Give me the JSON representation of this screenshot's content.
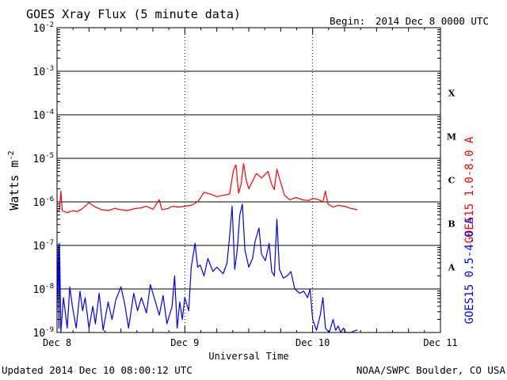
{
  "chart_data": {
    "type": "line",
    "title": "GOES Xray Flux (5 minute data)",
    "begin_label": "Begin:",
    "begin_value": "2014 Dec 8 0000 UTC",
    "xlabel": "Universal Time",
    "ylabel": "Watts m",
    "ylabel_exponent": "-2",
    "y_scale": "log",
    "ylim_exponents": [
      -9,
      -2
    ],
    "xlim_days": [
      0,
      3
    ],
    "x_ticks": [
      {
        "day": 0,
        "label": "Dec 8"
      },
      {
        "day": 1,
        "label": "Dec 9"
      },
      {
        "day": 2,
        "label": "Dec 10"
      },
      {
        "day": 3,
        "label": "Dec 11"
      }
    ],
    "y_ticks": [
      {
        "exp": -2,
        "base": "10",
        "sup": "-2"
      },
      {
        "exp": -3,
        "base": "10",
        "sup": "-3"
      },
      {
        "exp": -4,
        "base": "10",
        "sup": "-4"
      },
      {
        "exp": -5,
        "base": "10",
        "sup": "-5"
      },
      {
        "exp": -6,
        "base": "10",
        "sup": "-6"
      },
      {
        "exp": -7,
        "base": "10",
        "sup": "-7"
      },
      {
        "exp": -8,
        "base": "10",
        "sup": "-8"
      },
      {
        "exp": -9,
        "base": "10",
        "sup": "-9"
      }
    ],
    "flare_classes": [
      {
        "label": "X",
        "exp": -3.5
      },
      {
        "label": "M",
        "exp": -4.5
      },
      {
        "label": "C",
        "exp": -5.5
      },
      {
        "label": "B",
        "exp": -6.5
      },
      {
        "label": "A",
        "exp": -7.5
      }
    ],
    "grid": true,
    "series": [
      {
        "name": "GOES15 1.0-8.0 A",
        "color": "#ff0000",
        "points": [
          [
            0.0,
            -6.22
          ],
          [
            0.02,
            -6.18
          ],
          [
            0.03,
            -5.75
          ],
          [
            0.04,
            -6.2
          ],
          [
            0.08,
            -6.25
          ],
          [
            0.12,
            -6.2
          ],
          [
            0.16,
            -6.22
          ],
          [
            0.2,
            -6.15
          ],
          [
            0.25,
            -6.02
          ],
          [
            0.3,
            -6.12
          ],
          [
            0.35,
            -6.18
          ],
          [
            0.4,
            -6.2
          ],
          [
            0.45,
            -6.15
          ],
          [
            0.5,
            -6.18
          ],
          [
            0.55,
            -6.2
          ],
          [
            0.6,
            -6.16
          ],
          [
            0.65,
            -6.14
          ],
          [
            0.7,
            -6.1
          ],
          [
            0.75,
            -6.17
          ],
          [
            0.8,
            -5.95
          ],
          [
            0.82,
            -6.18
          ],
          [
            0.87,
            -6.15
          ],
          [
            0.9,
            -6.1
          ],
          [
            0.95,
            -6.12
          ],
          [
            1.0,
            -6.1
          ],
          [
            1.05,
            -6.08
          ],
          [
            1.1,
            -6.0
          ],
          [
            1.12,
            -5.92
          ],
          [
            1.15,
            -5.78
          ],
          [
            1.2,
            -5.82
          ],
          [
            1.25,
            -5.88
          ],
          [
            1.3,
            -5.85
          ],
          [
            1.35,
            -5.82
          ],
          [
            1.38,
            -5.28
          ],
          [
            1.4,
            -5.15
          ],
          [
            1.42,
            -5.8
          ],
          [
            1.44,
            -5.6
          ],
          [
            1.46,
            -5.12
          ],
          [
            1.48,
            -5.5
          ],
          [
            1.5,
            -5.7
          ],
          [
            1.53,
            -5.52
          ],
          [
            1.56,
            -5.35
          ],
          [
            1.6,
            -5.45
          ],
          [
            1.65,
            -5.3
          ],
          [
            1.68,
            -5.6
          ],
          [
            1.7,
            -5.72
          ],
          [
            1.72,
            -5.25
          ],
          [
            1.75,
            -5.55
          ],
          [
            1.78,
            -5.85
          ],
          [
            1.82,
            -5.95
          ],
          [
            1.87,
            -5.9
          ],
          [
            1.92,
            -5.95
          ],
          [
            1.97,
            -5.97
          ],
          [
            2.0,
            -5.92
          ],
          [
            2.05,
            -5.95
          ],
          [
            2.08,
            -6.0
          ],
          [
            2.1,
            -5.75
          ],
          [
            2.12,
            -6.05
          ],
          [
            2.16,
            -6.12
          ],
          [
            2.2,
            -6.08
          ],
          [
            2.25,
            -6.1
          ],
          [
            2.3,
            -6.15
          ],
          [
            2.35,
            -6.18
          ]
        ]
      },
      {
        "name": "GOES15 0.5-4.0 A",
        "color": "#0000ff",
        "points": [
          [
            0.0,
            -8.5
          ],
          [
            0.01,
            -6.98
          ],
          [
            0.015,
            -8.9
          ],
          [
            0.02,
            -6.95
          ],
          [
            0.03,
            -9.0
          ],
          [
            0.05,
            -8.2
          ],
          [
            0.08,
            -8.9
          ],
          [
            0.1,
            -7.95
          ],
          [
            0.12,
            -8.4
          ],
          [
            0.15,
            -8.9
          ],
          [
            0.18,
            -8.05
          ],
          [
            0.2,
            -8.5
          ],
          [
            0.22,
            -8.2
          ],
          [
            0.25,
            -8.9
          ],
          [
            0.28,
            -8.4
          ],
          [
            0.3,
            -8.8
          ],
          [
            0.33,
            -8.1
          ],
          [
            0.36,
            -8.95
          ],
          [
            0.4,
            -8.3
          ],
          [
            0.43,
            -8.7
          ],
          [
            0.46,
            -8.25
          ],
          [
            0.5,
            -7.95
          ],
          [
            0.53,
            -8.35
          ],
          [
            0.56,
            -8.9
          ],
          [
            0.6,
            -8.1
          ],
          [
            0.63,
            -8.5
          ],
          [
            0.66,
            -8.2
          ],
          [
            0.7,
            -8.55
          ],
          [
            0.73,
            -7.9
          ],
          [
            0.76,
            -8.2
          ],
          [
            0.8,
            -8.6
          ],
          [
            0.83,
            -8.15
          ],
          [
            0.86,
            -8.8
          ],
          [
            0.9,
            -8.4
          ],
          [
            0.92,
            -7.7
          ],
          [
            0.94,
            -8.9
          ],
          [
            0.96,
            -8.3
          ],
          [
            0.98,
            -8.7
          ],
          [
            1.0,
            -8.2
          ],
          [
            1.03,
            -8.5
          ],
          [
            1.05,
            -7.5
          ],
          [
            1.08,
            -6.95
          ],
          [
            1.1,
            -7.5
          ],
          [
            1.12,
            -7.45
          ],
          [
            1.15,
            -7.7
          ],
          [
            1.18,
            -7.3
          ],
          [
            1.22,
            -7.6
          ],
          [
            1.25,
            -7.5
          ],
          [
            1.3,
            -7.65
          ],
          [
            1.33,
            -7.4
          ],
          [
            1.35,
            -6.8
          ],
          [
            1.37,
            -6.1
          ],
          [
            1.39,
            -7.55
          ],
          [
            1.41,
            -7.1
          ],
          [
            1.43,
            -6.3
          ],
          [
            1.45,
            -6.05
          ],
          [
            1.47,
            -7.1
          ],
          [
            1.5,
            -7.5
          ],
          [
            1.53,
            -7.3
          ],
          [
            1.55,
            -6.9
          ],
          [
            1.58,
            -6.6
          ],
          [
            1.6,
            -7.2
          ],
          [
            1.63,
            -7.35
          ],
          [
            1.66,
            -6.95
          ],
          [
            1.68,
            -7.6
          ],
          [
            1.7,
            -7.7
          ],
          [
            1.72,
            -6.4
          ],
          [
            1.74,
            -7.55
          ],
          [
            1.77,
            -7.75
          ],
          [
            1.8,
            -7.7
          ],
          [
            1.83,
            -7.6
          ],
          [
            1.86,
            -8.0
          ],
          [
            1.9,
            -8.1
          ],
          [
            1.93,
            -8.05
          ],
          [
            1.96,
            -8.2
          ],
          [
            1.98,
            -8.0
          ],
          [
            2.0,
            -8.7
          ],
          [
            2.03,
            -8.95
          ],
          [
            2.06,
            -8.6
          ],
          [
            2.08,
            -8.2
          ],
          [
            2.1,
            -8.9
          ],
          [
            2.13,
            -9.0
          ],
          [
            2.16,
            -8.7
          ],
          [
            2.18,
            -8.95
          ],
          [
            2.2,
            -8.85
          ],
          [
            2.22,
            -9.0
          ],
          [
            2.24,
            -8.9
          ],
          [
            2.26,
            -9.0
          ],
          [
            2.3,
            -9.0
          ],
          [
            2.33,
            -8.96
          ],
          [
            2.35,
            -8.94
          ]
        ]
      }
    ]
  },
  "footer": {
    "updated": "Updated 2014 Dec 10 08:00:12 UTC",
    "source": "NOAA/SWPC Boulder, CO USA"
  }
}
